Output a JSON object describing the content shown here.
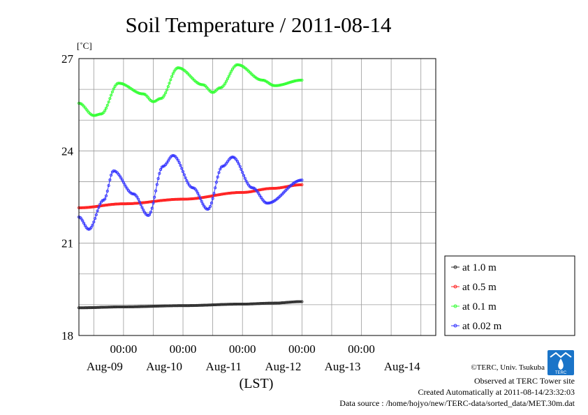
{
  "chart_data": {
    "type": "line",
    "title": "Soil Temperature / 2011-08-14",
    "unit_label": "[˚C]",
    "xlabel": "(LST)",
    "x_time_ticks": [
      "00:00",
      "00:00",
      "00:00",
      "00:00",
      "00:00"
    ],
    "x_date_labels": [
      "Aug-09",
      "Aug-10",
      "Aug-11",
      "Aug-12",
      "Aug-13",
      "Aug-14"
    ],
    "x_range": [
      "2011-08-08T06:00",
      "2011-08-14T06:00"
    ],
    "data_end": "2011-08-12T00:00",
    "ylim": [
      18,
      27
    ],
    "yticks": [
      18,
      21,
      24,
      27
    ],
    "y_gridlines": [
      19,
      20,
      21,
      22,
      23,
      24,
      25,
      26
    ],
    "grid": true,
    "legend_position": "right-lower, outside plot",
    "series": [
      {
        "name": "at 1.0 m",
        "color": "#303030",
        "points": [
          [
            "2011-08-08T06:00",
            18.9
          ],
          [
            "2011-08-09T00:00",
            18.93
          ],
          [
            "2011-08-10T00:00",
            18.97
          ],
          [
            "2011-08-11T00:00",
            19.02
          ],
          [
            "2011-08-11T12:00",
            19.05
          ],
          [
            "2011-08-12T00:00",
            19.1
          ]
        ]
      },
      {
        "name": "at 0.5 m",
        "color": "#ff2020",
        "points": [
          [
            "2011-08-08T06:00",
            22.15
          ],
          [
            "2011-08-09T00:00",
            22.28
          ],
          [
            "2011-08-10T00:00",
            22.43
          ],
          [
            "2011-08-11T00:00",
            22.65
          ],
          [
            "2011-08-11T12:00",
            22.78
          ],
          [
            "2011-08-12T00:00",
            22.9
          ]
        ]
      },
      {
        "name": "at 0.1 m",
        "color": "#33ff33",
        "points": [
          [
            "2011-08-08T06:00",
            25.55
          ],
          [
            "2011-08-08T12:00",
            25.15
          ],
          [
            "2011-08-08T15:00",
            25.2
          ],
          [
            "2011-08-08T22:00",
            26.2
          ],
          [
            "2011-08-09T08:00",
            25.85
          ],
          [
            "2011-08-09T12:00",
            25.6
          ],
          [
            "2011-08-09T15:00",
            25.7
          ],
          [
            "2011-08-09T22:00",
            26.7
          ],
          [
            "2011-08-10T08:00",
            26.15
          ],
          [
            "2011-08-10T12:00",
            25.9
          ],
          [
            "2011-08-10T15:00",
            26.05
          ],
          [
            "2011-08-10T22:00",
            26.8
          ],
          [
            "2011-08-11T08:00",
            26.3
          ],
          [
            "2011-08-11T13:00",
            26.12
          ],
          [
            "2011-08-12T00:00",
            26.3
          ]
        ]
      },
      {
        "name": "at 0.02 m",
        "color": "#3333ff",
        "points": [
          [
            "2011-08-08T06:00",
            21.85
          ],
          [
            "2011-08-08T10:00",
            21.45
          ],
          [
            "2011-08-08T16:00",
            22.4
          ],
          [
            "2011-08-08T20:00",
            23.35
          ],
          [
            "2011-08-09T04:00",
            22.6
          ],
          [
            "2011-08-09T10:00",
            21.9
          ],
          [
            "2011-08-09T16:00",
            23.5
          ],
          [
            "2011-08-09T20:00",
            23.85
          ],
          [
            "2011-08-10T04:00",
            22.8
          ],
          [
            "2011-08-10T10:00",
            22.1
          ],
          [
            "2011-08-10T16:00",
            23.5
          ],
          [
            "2011-08-10T20:00",
            23.8
          ],
          [
            "2011-08-11T04:00",
            22.8
          ],
          [
            "2011-08-11T10:00",
            22.3
          ],
          [
            "2011-08-12T00:00",
            23.05
          ]
        ]
      }
    ]
  },
  "footer": {
    "copyright": "©TERC, Univ. Tsukuba",
    "observed": "Observed at TERC Tower site",
    "created": "Created Automatically at 2011-08-14/23:32:03",
    "data_source": "Data source : /home/hojyo/new/TERC-data/sorted_data/MET.30m.dat"
  },
  "logo_text": "TERC"
}
